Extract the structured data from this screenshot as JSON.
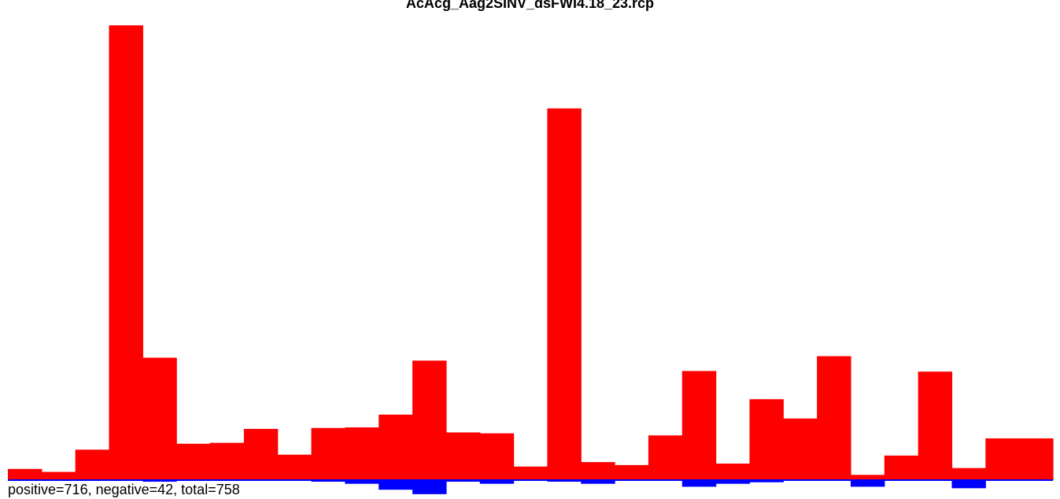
{
  "chart_data": {
    "type": "bar",
    "title": "AcAcg_Aag2SINV_dsFWI4.18_23.rcp",
    "footer": "positive=716, negative=42, total=758",
    "colors": {
      "positive": "#ff0000",
      "negative": "#0000ff"
    },
    "series": [
      {
        "name": "positive",
        "values": [
          3.5,
          2.5,
          10,
          153,
          41,
          12,
          12.3,
          17,
          8.3,
          17.3,
          17.5,
          21.8,
          40,
          15.8,
          15.5,
          4.3,
          125,
          5.8,
          4.8,
          14.8,
          36.5,
          5.3,
          27,
          20.5,
          41.5,
          1.5,
          8,
          36.3,
          3.8,
          13.8,
          13.8
        ]
      },
      {
        "name": "negative",
        "values": [
          0,
          0,
          0,
          0.3,
          0.8,
          0.5,
          0.3,
          0.5,
          0.5,
          0.8,
          1.5,
          3.5,
          5,
          0.8,
          1.5,
          0,
          0.8,
          1.5,
          0.3,
          0,
          2.5,
          1.5,
          1,
          0.3,
          0.3,
          2.5,
          0.3,
          0,
          3,
          0.3,
          0.3
        ]
      }
    ],
    "ylim": [
      -5,
      153
    ],
    "axes": "none",
    "grid": false,
    "legend": "none"
  }
}
